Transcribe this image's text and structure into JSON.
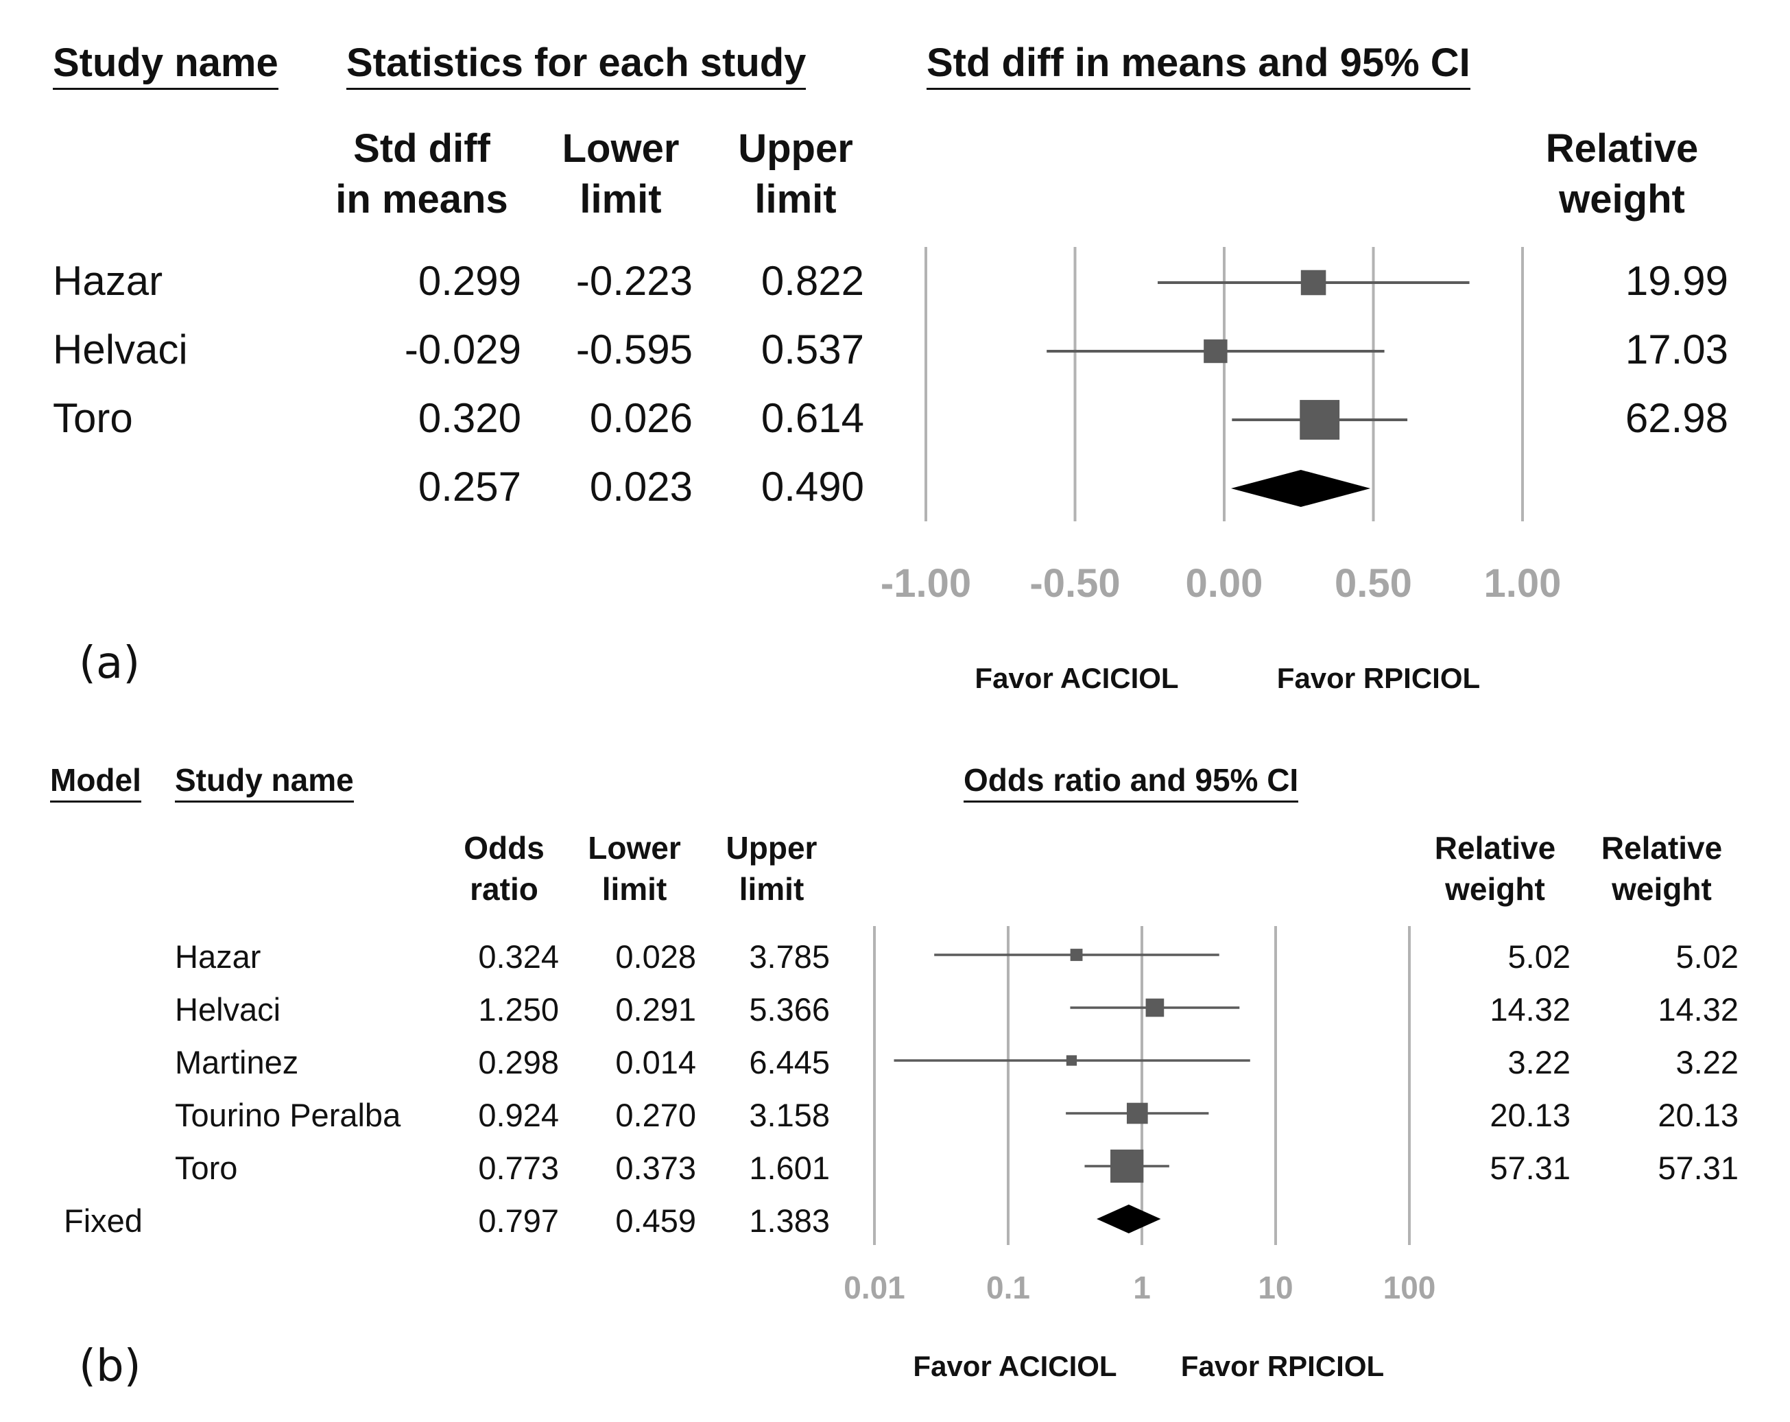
{
  "chart_data": [
    {
      "type": "forest",
      "panel_label": "(a)",
      "headers": {
        "study_name": "Study name",
        "statistics": "Statistics for each study",
        "plot_title": "Std diff in means and 95% CI"
      },
      "columns": {
        "estimate": [
          "Std diff",
          "in means"
        ],
        "lower": [
          "Lower",
          "limit"
        ],
        "upper": [
          "Upper",
          "limit"
        ],
        "weight": [
          "Relative",
          "weight"
        ]
      },
      "studies": [
        {
          "name": "Hazar",
          "estimate": "0.299",
          "lower": "-0.223",
          "upper": "0.822",
          "weight": "19.99",
          "est": 0.299,
          "lo": -0.223,
          "hi": 0.822
        },
        {
          "name": "Helvaci",
          "estimate": "-0.029",
          "lower": "-0.595",
          "upper": "0.537",
          "weight": "17.03",
          "est": -0.029,
          "lo": -0.595,
          "hi": 0.537
        },
        {
          "name": "Toro",
          "estimate": "0.320",
          "lower": "0.026",
          "upper": "0.614",
          "weight": "62.98",
          "est": 0.32,
          "lo": 0.026,
          "hi": 0.614
        }
      ],
      "summary": {
        "estimate": "0.257",
        "lower": "0.023",
        "upper": "0.490",
        "est": 0.257,
        "lo": 0.023,
        "hi": 0.49
      },
      "x_axis": {
        "scale": "linear",
        "range": [
          -1.0,
          1.0
        ],
        "ticks": [
          -1.0,
          -0.5,
          0.0,
          0.5,
          1.0
        ],
        "tick_labels": [
          "-1.00",
          "-0.50",
          "0.00",
          "0.50",
          "1.00"
        ]
      },
      "favor_left": "Favor ACICIOL",
      "favor_right": "Favor RPICIOL"
    },
    {
      "type": "forest",
      "panel_label": "(b)",
      "headers": {
        "model": "Model",
        "study_name": "Study name",
        "plot_title": "Odds ratio and 95% CI"
      },
      "columns": {
        "estimate": [
          "Odds",
          "ratio"
        ],
        "lower": [
          "Lower",
          "limit"
        ],
        "upper": [
          "Upper",
          "limit"
        ],
        "weight1": [
          "Relative",
          "weight"
        ],
        "weight2": [
          "Relative",
          "weight"
        ]
      },
      "studies": [
        {
          "name": "Hazar",
          "estimate": "0.324",
          "lower": "0.028",
          "upper": "3.785",
          "weight1": "5.02",
          "weight2": "5.02",
          "est": 0.324,
          "lo": 0.028,
          "hi": 3.785,
          "w": 5.02
        },
        {
          "name": "Helvaci",
          "estimate": "1.250",
          "lower": "0.291",
          "upper": "5.366",
          "weight1": "14.32",
          "weight2": "14.32",
          "est": 1.25,
          "lo": 0.291,
          "hi": 5.366,
          "w": 14.32
        },
        {
          "name": "Martinez",
          "estimate": "0.298",
          "lower": "0.014",
          "upper": "6.445",
          "weight1": "3.22",
          "weight2": "3.22",
          "est": 0.298,
          "lo": 0.014,
          "hi": 6.445,
          "w": 3.22
        },
        {
          "name": "Tourino Peralba",
          "estimate": "0.924",
          "lower": "0.270",
          "upper": "3.158",
          "weight1": "20.13",
          "weight2": "20.13",
          "est": 0.924,
          "lo": 0.27,
          "hi": 3.158,
          "w": 20.13
        },
        {
          "name": "Toro",
          "estimate": "0.773",
          "lower": "0.373",
          "upper": "1.601",
          "weight1": "57.31",
          "weight2": "57.31",
          "est": 0.773,
          "lo": 0.373,
          "hi": 1.601,
          "w": 57.31
        }
      ],
      "summary": {
        "model": "Fixed",
        "estimate": "0.797",
        "lower": "0.459",
        "upper": "1.383",
        "est": 0.797,
        "lo": 0.459,
        "hi": 1.383
      },
      "x_axis": {
        "scale": "log",
        "range": [
          0.01,
          100
        ],
        "ticks": [
          0.01,
          0.1,
          1,
          10,
          100
        ],
        "tick_labels": [
          "0.01",
          "0.1",
          "1",
          "10",
          "100"
        ]
      },
      "favor_left": "Favor ACICIOL",
      "favor_right": "Favor RPICIOL"
    }
  ],
  "colors": {
    "marker": "#5b5b5b",
    "ci_line": "#5b5b5b",
    "grid": "#b3b3b3",
    "diamond": "#000000",
    "tick_text": "#a6a6a6"
  }
}
